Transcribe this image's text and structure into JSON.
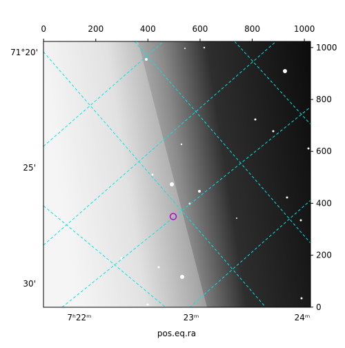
{
  "chart_data": {
    "type": "image",
    "xlim": [
      -0.5,
      1023.5
    ],
    "ylim": [
      -0.5,
      1023.5
    ],
    "xticks": [
      0,
      200,
      400,
      600,
      800,
      1000
    ],
    "yticks": [
      0,
      200,
      400,
      600,
      800,
      1000
    ],
    "dec_labels": [
      "71°20'",
      "25'",
      "30'"
    ],
    "ra_labels": [
      "7ʰ22ᵐ",
      "23ᵐ",
      "24ᵐ"
    ],
    "xlabel": "pos.eq.ra",
    "marker": {
      "x": 497,
      "y": 349,
      "color": "#c000c0"
    }
  }
}
